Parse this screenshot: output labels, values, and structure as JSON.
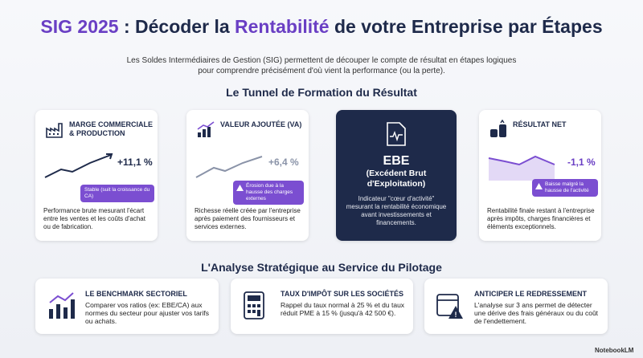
{
  "header": {
    "title_parts": [
      "SIG 2025",
      " : Décoder la ",
      "Rentabilité",
      " de votre Entreprise par Étapes"
    ],
    "subtitle_lines": [
      "Les Soldes Intermédiaires de Gestion (SIG) permettent de découper le compte de résultat en étapes logiques",
      "pour comprendre précisément d'où vient la performance (ou la perte)."
    ]
  },
  "tunnel": {
    "heading": "Le Tunnel de Formation du Résultat",
    "cards": [
      {
        "title": "MARGE COMMERCIALE & PRODUCTION",
        "value": "+11,1 %",
        "badge": "Stable (suit la croissance du CA)",
        "description": "Performance brute mesurant l'écart entre les ventes et les coûts d'achat ou de fabrication."
      },
      {
        "title": "VALEUR AJOUTÉE (VA)",
        "value": "+6,4 %",
        "badge": "Érosion due à la hausse des charges externes",
        "description": "Richesse réelle créée par l'entreprise après paiement des fournisseurs et services externes."
      },
      {
        "title": "EBE",
        "subtitle": "(Excédent Brut d'Exploitation)",
        "description": "Indicateur \"cœur d'activité\" mesurant la rentabilité économique avant investissements et financements."
      },
      {
        "title": "RÉSULTAT NET",
        "value": "-1,1 %",
        "badge": "Baisse malgré la hausse de l'activité",
        "description": "Rentabilité finale restant à l'entreprise après impôts, charges financières et éléments exceptionnels."
      }
    ]
  },
  "analysis": {
    "heading": "L'Analyse Stratégique au Service du Pilotage",
    "items": [
      {
        "title": "LE BENCHMARK SECTORIEL",
        "text": "Comparer vos ratios (ex: EBE/CA) aux normes du secteur pour ajuster vos tarifs ou achats."
      },
      {
        "title": "TAUX D'IMPÔT SUR LES SOCIÉTÉS",
        "text": "Rappel du taux normal à 25 % et du taux réduit PME à 15 % (jusqu'à 42 500 €)."
      },
      {
        "title": "ANTICIPER LE REDRESSEMENT",
        "text": "L'analyse sur 3 ans permet de détecter une dérive des frais généraux ou du coût de l'endettement."
      }
    ]
  },
  "footer": {
    "brand": "NotebookLM"
  }
}
